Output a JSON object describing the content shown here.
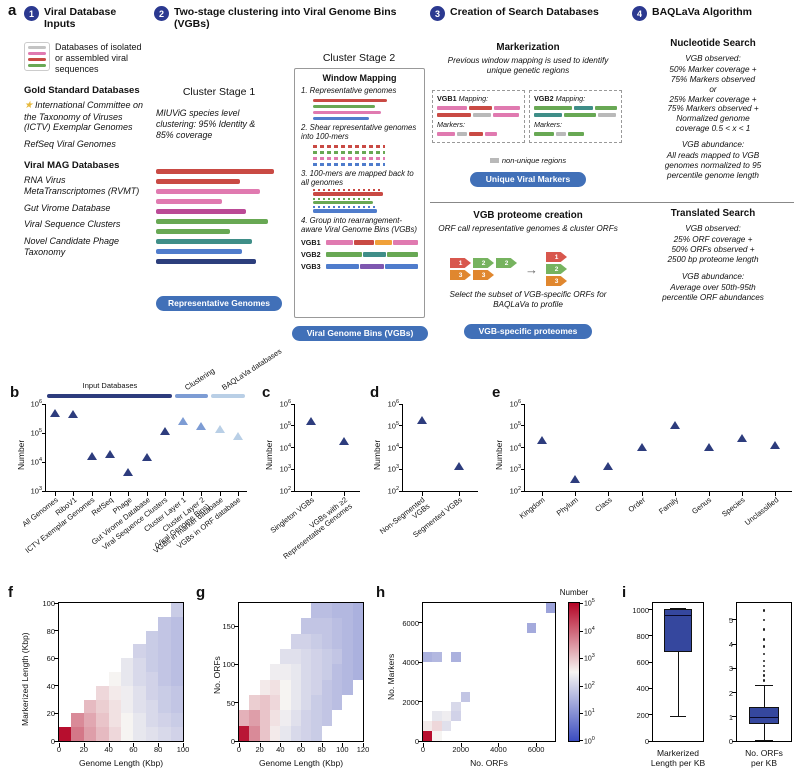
{
  "panels": {
    "a": "a",
    "b": "b",
    "c": "c",
    "d": "d",
    "e": "e",
    "f": "f",
    "g": "g",
    "h": "h",
    "i": "i"
  },
  "panel_a": {
    "inputs": {
      "number": "1",
      "title": "Viral Database Inputs",
      "legend_caption": "Databases of isolated or assembled viral sequences",
      "gold_header": "Gold Standard Databases",
      "star": "★",
      "gold_items": [
        "International Committee on the Taxonomy of Viruses (ICTV) Exemplar Genomes",
        "RefSeq Viral Genomes"
      ],
      "mag_header": "Viral MAG Databases",
      "mag_items": [
        "RNA Virus MetaTranscriptomes (RVMT)",
        "Gut Virome Database",
        "Viral Sequence Clusters",
        "Novel Candidate Phage Taxonomy"
      ]
    },
    "clustering": {
      "number": "2",
      "title": "Two-stage clustering into Viral Genome Bins (VGBs)",
      "stage1_title": "Cluster Stage 1",
      "stage1_text": "MIUViG species level clustering: 95% Identity & 85% coverage",
      "stage1_badge": "Representative Genomes",
      "stage2_title": "Cluster Stage 2",
      "window_title": "Window Mapping",
      "steps": [
        "1. Representative genomes",
        "2. Shear representative genomes into 100-mers",
        "3. 100-mers are mapped back to all genomes",
        "4. Group into rearrangement-aware Viral Genome Bins (VGBs)"
      ],
      "stage2_badge": "Viral Genome Bins (VGBs)",
      "stage1_bars": [
        [
          "#c94a44",
          118
        ],
        [
          "#c94a44",
          84
        ],
        [
          "#e07ab0",
          104
        ],
        [
          "#e07ab0",
          66
        ],
        [
          "#bb4a96",
          90
        ],
        [
          "#68a854",
          112
        ],
        [
          "#68a854",
          74
        ],
        [
          "#3f8e88",
          96
        ],
        [
          "#4f7ccc",
          86
        ],
        [
          "#2c3e7c",
          100
        ]
      ],
      "wm_bars1": [
        [
          "#c94a44",
          74
        ],
        [
          "#68a854",
          62
        ],
        [
          "#e07ab0",
          68
        ],
        [
          "#4f7ccc",
          56
        ]
      ],
      "wm_dashes": [
        "#c94a44",
        "#68a854",
        "#e07ab0",
        "#4f7ccc"
      ],
      "wm_dotbars": [
        [
          "#c94a44",
          70
        ],
        [
          "#68a854",
          60
        ],
        [
          "#4f7ccc",
          64
        ]
      ],
      "wm_vgbs": [
        {
          "label": "VGB1",
          "segs": [
            [
              "#e07ab0",
              28
            ],
            [
              "#c94a44",
              22
            ],
            [
              "#f0a13a",
              18
            ],
            [
              "#e07ab0",
              26
            ]
          ]
        },
        {
          "label": "VGB2",
          "segs": [
            [
              "#68a854",
              38
            ],
            [
              "#3f8e88",
              24
            ],
            [
              "#68a854",
              32
            ]
          ]
        },
        {
          "label": "VGB3",
          "segs": [
            [
              "#4f7ccc",
              34
            ],
            [
              "#7e57b0",
              26
            ],
            [
              "#4f7ccc",
              34
            ]
          ]
        }
      ]
    },
    "search_db": {
      "number": "3",
      "title": "Creation of Search Databases",
      "marker_title": "Markerization",
      "marker_text": "Previous window mapping is used to identify unique genetic regions",
      "vgb1_label": "VGB1",
      "vgb2_label": "VGB2",
      "mapping_label": "Mapping:",
      "markers_label": "Markers:",
      "nonunique_label": "non-unique regions",
      "marker_badge": "Unique Viral Markers",
      "proteome_title": "VGB proteome creation",
      "proteome_text": "ORF call representative genomes & cluster ORFs",
      "select_text": "Select the subset of VGB-specific ORFs for BAQLaVa to profile",
      "proteome_badge": "VGB-specific proteomes",
      "vgb1_map_rows": [
        [
          [
            "#e07ab0",
            30
          ],
          [
            "#c94a44",
            24
          ],
          [
            "#e07ab0",
            26
          ]
        ],
        [
          [
            "#c94a44",
            34
          ],
          [
            "#b9b9b9",
            18
          ],
          [
            "#e07ab0",
            26
          ]
        ]
      ],
      "vgb1_markers": [
        [
          "#e07ab0",
          18
        ],
        [
          "#b9b9b9",
          10
        ],
        [
          "#c94a44",
          14
        ],
        [
          "#e07ab0",
          12
        ]
      ],
      "vgb2_map_rows": [
        [
          [
            "#68a854",
            38
          ],
          [
            "#3f8e88",
            20
          ],
          [
            "#68a854",
            22
          ]
        ],
        [
          [
            "#3f8e88",
            28
          ],
          [
            "#68a854",
            32
          ],
          [
            "#b9b9b9",
            18
          ]
        ]
      ],
      "vgb2_markers": [
        [
          "#68a854",
          20
        ],
        [
          "#b9b9b9",
          10
        ],
        [
          "#68a854",
          16
        ]
      ],
      "orf_rows": [
        [
          {
            "n": "1",
            "c": "#d8574d"
          },
          {
            "n": "2",
            "c": "#76b35f"
          },
          {
            "n": "2",
            "c": "#76b35f"
          }
        ],
        [
          {
            "n": "3",
            "c": "#e0872f"
          },
          {
            "n": "3",
            "c": "#e0872f"
          }
        ]
      ],
      "orf_stack": [
        {
          "n": "1",
          "c": "#d8574d"
        },
        {
          "n": "2",
          "c": "#76b35f"
        },
        {
          "n": "3",
          "c": "#e0872f"
        }
      ]
    },
    "algorithm": {
      "number": "4",
      "title": "BAQLaVa Algorithm",
      "nucleotide_title": "Nucleotide Search",
      "observed_label": "VGB observed:",
      "abundance_label": "VGB abundance:",
      "nuc_observed_text": "50% Marker coverage +\n75% Markers observed\nor\n25% Marker coverage +\n75% Markers observed +\nNormalized genome\ncoverage 0.5 < x < 1",
      "nuc_abundance_text": "All reads mapped to VGB\ngenomes normalized to 95\npercentile genome length",
      "translated_title": "Translated Search",
      "trans_observed_text": "25% ORF coverage +\n50% ORFs observed +\n2500 bp proteome length",
      "trans_abundance_text": "Average over 50th-95th\npercentile ORF abundances"
    }
  },
  "chart_data": [
    {
      "id": "b",
      "type": "scatter",
      "marker": "triangle",
      "ylabel": "Number",
      "yscale": "log",
      "ylim": [
        1000,
        1000000
      ],
      "groups": [
        {
          "label": "Input Databases",
          "color": "#2d3c7d",
          "span": [
            0,
            7
          ],
          "label_rotated": false
        },
        {
          "label": "Clustering",
          "color": "#7d9cd4",
          "span": [
            7,
            9
          ],
          "label_rotated": true
        },
        {
          "label": "BAQLaVa databases",
          "color": "#b9cfe6",
          "span": [
            9,
            11
          ],
          "label_rotated": true
        }
      ],
      "categories": [
        "All Genomes",
        "RiboV1",
        "ICTV Exemplar Genomes",
        "RefSeq",
        "Phage",
        "Gut Virome Database",
        "Viral Sequence Clusters",
        "Cluster Layer 1",
        "Cluster Layer 2\n(Viral Genome Bins)",
        "VGBs in marker database",
        "VGBs in ORF database"
      ],
      "values": [
        400000,
        350000,
        13000,
        15000,
        3500,
        12000,
        90000,
        200000,
        140000,
        110000,
        60000
      ],
      "point_colors": [
        "#2d3c7d",
        "#2d3c7d",
        "#2d3c7d",
        "#2d3c7d",
        "#2d3c7d",
        "#2d3c7d",
        "#2d3c7d",
        "#7d9cd4",
        "#7d9cd4",
        "#b9cfe6",
        "#b9cfe6"
      ]
    },
    {
      "id": "c",
      "type": "scatter",
      "marker": "triangle",
      "ylabel": "Number",
      "yscale": "log",
      "ylim": [
        100,
        1000000
      ],
      "categories": [
        "Singleton VGBs",
        "VGBs with ≥2\nRepresentative Genomes"
      ],
      "values": [
        120000,
        15000
      ],
      "point_colors": [
        "#2d3c7d",
        "#2d3c7d"
      ]
    },
    {
      "id": "d",
      "type": "scatter",
      "marker": "triangle",
      "ylabel": "Number",
      "yscale": "log",
      "ylim": [
        100,
        1000000
      ],
      "categories": [
        "Non-Segmented\nVGBs",
        "Segmented VGBs"
      ],
      "values": [
        130000,
        1000
      ],
      "point_colors": [
        "#2d3c7d",
        "#2d3c7d"
      ]
    },
    {
      "id": "e",
      "type": "scatter",
      "marker": "triangle",
      "ylabel": "Number",
      "yscale": "log",
      "ylim": [
        100,
        1000000
      ],
      "categories": [
        "Kingdom",
        "Phylum",
        "Class",
        "Order",
        "Family",
        "Genus",
        "Species",
        "Unclassified"
      ],
      "values": [
        16000,
        250,
        1000,
        8000,
        80000,
        8000,
        20000,
        10000
      ],
      "point_colors": [
        "#2d3c7d",
        "#2d3c7d",
        "#2d3c7d",
        "#2d3c7d",
        "#2d3c7d",
        "#2d3c7d",
        "#2d3c7d",
        "#2d3c7d"
      ]
    },
    {
      "id": "f",
      "type": "heatmap",
      "xlabel": "Genome Length (Kbp)",
      "ylabel": "Markerized Length (Kbp)",
      "x_max": 100,
      "y_max": 100,
      "x_ticks": [
        0,
        20,
        40,
        60,
        80,
        100
      ],
      "y_ticks": [
        0,
        20,
        40,
        60,
        80,
        100
      ],
      "value_scale": "log10 counts",
      "rows_log10": [
        [
          4.9,
          3.8,
          3.4,
          3.1,
          2.8,
          2.5,
          2.3,
          2.2,
          2.1,
          2.0
        ],
        [
          null,
          3.6,
          3.3,
          3.0,
          2.7,
          2.5,
          2.3,
          2.1,
          2.0,
          1.9
        ],
        [
          null,
          null,
          3.1,
          2.9,
          2.7,
          2.4,
          2.2,
          2.1,
          1.9,
          1.8
        ],
        [
          null,
          null,
          null,
          2.8,
          2.6,
          2.4,
          2.2,
          2.0,
          1.9,
          1.8
        ],
        [
          null,
          null,
          null,
          null,
          2.5,
          2.3,
          2.1,
          2.0,
          1.8,
          1.7
        ],
        [
          null,
          null,
          null,
          null,
          null,
          2.3,
          2.1,
          1.9,
          1.8,
          1.7
        ],
        [
          null,
          null,
          null,
          null,
          null,
          null,
          2.0,
          1.9,
          1.8,
          1.7
        ],
        [
          null,
          null,
          null,
          null,
          null,
          null,
          null,
          1.9,
          1.8,
          1.7
        ],
        [
          null,
          null,
          null,
          null,
          null,
          null,
          null,
          null,
          1.8,
          1.7
        ],
        [
          null,
          null,
          null,
          null,
          null,
          null,
          null,
          null,
          null,
          1.9
        ]
      ]
    },
    {
      "id": "g",
      "type": "heatmap",
      "xlabel": "Genome Length (Kbp)",
      "ylabel": "No. ORFs",
      "x_max": 120,
      "y_max": 180,
      "x_ticks": [
        0,
        20,
        40,
        60,
        80,
        100,
        120
      ],
      "y_ticks": [
        0,
        50,
        100,
        150
      ],
      "value_scale": "log10 counts",
      "rows_log10": [
        [
          4.8,
          3.6,
          3.0,
          2.6,
          2.3,
          2.1,
          2.0,
          1.9,
          null,
          null,
          null,
          null
        ],
        [
          3.2,
          3.4,
          3.0,
          2.7,
          2.4,
          2.2,
          2.0,
          1.9,
          1.8,
          null,
          null,
          null
        ],
        [
          null,
          2.9,
          3.0,
          2.8,
          2.5,
          2.3,
          2.1,
          1.9,
          1.8,
          1.7,
          null,
          null
        ],
        [
          null,
          null,
          2.6,
          2.7,
          2.5,
          2.3,
          2.1,
          2.0,
          1.8,
          1.7,
          1.6,
          null
        ],
        [
          null,
          null,
          null,
          2.4,
          2.4,
          2.3,
          2.1,
          2.0,
          1.9,
          1.7,
          1.6,
          1.5
        ],
        [
          null,
          null,
          null,
          null,
          2.2,
          2.2,
          2.1,
          2.0,
          1.9,
          1.8,
          1.6,
          1.5
        ],
        [
          null,
          null,
          null,
          null,
          null,
          2.0,
          2.0,
          1.9,
          1.8,
          1.7,
          1.6,
          1.5
        ],
        [
          null,
          null,
          null,
          null,
          null,
          null,
          1.8,
          1.8,
          1.8,
          1.7,
          1.6,
          1.5
        ],
        [
          null,
          null,
          null,
          null,
          null,
          null,
          null,
          1.7,
          1.7,
          1.6,
          1.6,
          1.5
        ]
      ]
    },
    {
      "id": "h",
      "type": "heatmap-sparse",
      "xlabel": "No. ORFs",
      "ylabel": "No. Markers",
      "x_max": 7000,
      "y_max": 7000,
      "bin": 500,
      "ncols": 14,
      "nrows": 14,
      "x_ticks": [
        0,
        2000,
        4000,
        6000
      ],
      "y_ticks": [
        0,
        2000,
        4000,
        6000
      ],
      "cells": [
        [
          0,
          0,
          4.9
        ],
        [
          1,
          0,
          2.5
        ],
        [
          0,
          1,
          2.6
        ],
        [
          1,
          1,
          2.8
        ],
        [
          2,
          1,
          2.2
        ],
        [
          1,
          2,
          2.3
        ],
        [
          2,
          2,
          2.4
        ],
        [
          3,
          2,
          2.0
        ],
        [
          3,
          3,
          2.1
        ],
        [
          4,
          4,
          1.8
        ],
        [
          0,
          8,
          1.5
        ],
        [
          1,
          8,
          1.6
        ],
        [
          3,
          8,
          1.5
        ],
        [
          11,
          11,
          1.4
        ],
        [
          13,
          13,
          1.3
        ]
      ],
      "colorbar": {
        "title": "Number",
        "tick_exponents": [
          0,
          1,
          2,
          3,
          4,
          5
        ],
        "vmax_log10": 5
      }
    },
    {
      "id": "i",
      "type": "boxplot",
      "box_color": "#35479e",
      "plots": [
        {
          "label": "Markerized\nLength per KB",
          "ylim": [
            0,
            1050
          ],
          "yticks": [
            0,
            200,
            400,
            600,
            800,
            1000
          ],
          "whisker_low": 190,
          "q1": 680,
          "median": 960,
          "q3": 1005,
          "whisker_high": 1010,
          "outliers": []
        },
        {
          "label": "No. ORFs\nper KB",
          "ylim": [
            0,
            5.7
          ],
          "yticks": [
            0,
            1,
            2,
            3,
            4,
            5
          ],
          "whisker_low": 0.05,
          "q1": 0.7,
          "median": 1.0,
          "q3": 1.4,
          "whisker_high": 2.3,
          "outliers": [
            2.5,
            2.7,
            2.9,
            3.1,
            3.3,
            3.6,
            3.9,
            4.2,
            4.6,
            5.0,
            5.4
          ]
        }
      ]
    }
  ]
}
